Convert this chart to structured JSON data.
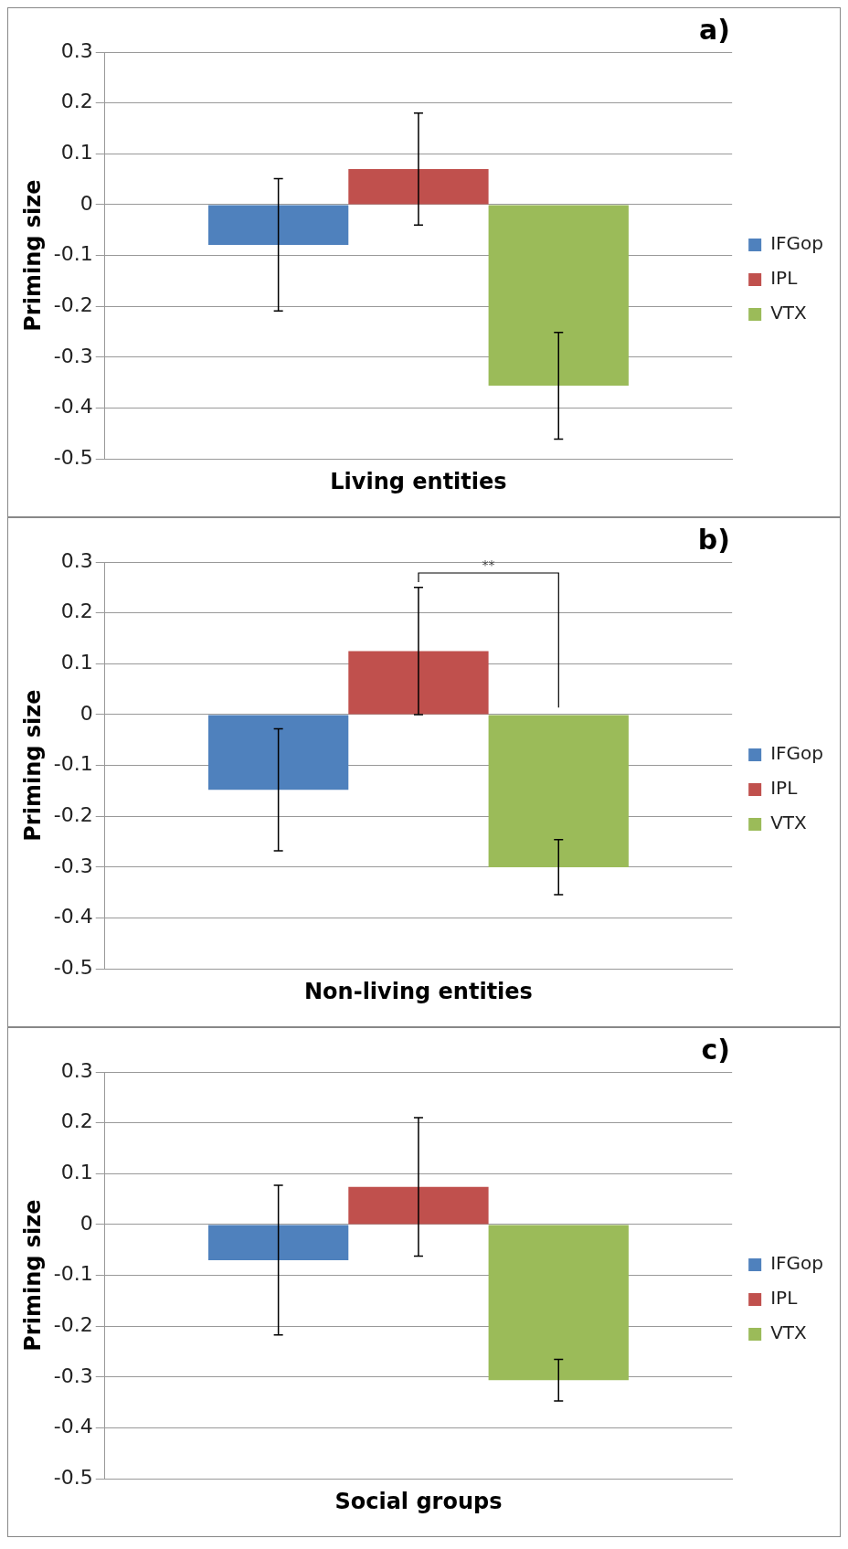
{
  "chart_data": [
    {
      "type": "bar",
      "title": "a)",
      "categories": [
        "Living entities"
      ],
      "ylabel": "Priming size",
      "ylim": [
        -0.5,
        0.3
      ],
      "yticks": [
        -0.5,
        -0.4,
        -0.3,
        -0.2,
        -0.1,
        0,
        0.1,
        0.2,
        0.3
      ],
      "grid": "y",
      "legend": "right",
      "series": [
        {
          "name": "IFGop",
          "color": "#4f81bd",
          "values": [
            -0.079
          ],
          "errors": [
            0.13
          ]
        },
        {
          "name": "IPL",
          "color": "#c0504d",
          "values": [
            0.07
          ],
          "errors": [
            0.11
          ]
        },
        {
          "name": "VTX",
          "color": "#9bbb59",
          "values": [
            -0.356
          ],
          "errors": [
            0.105
          ]
        }
      ]
    },
    {
      "type": "bar",
      "title": "b)",
      "categories": [
        "Non-living entities"
      ],
      "ylabel": "Priming size",
      "ylim": [
        -0.5,
        0.3
      ],
      "yticks": [
        -0.5,
        -0.4,
        -0.3,
        -0.2,
        -0.1,
        0,
        0.1,
        0.2,
        0.3
      ],
      "grid": "y",
      "legend": "right",
      "annotations": [
        "**"
      ],
      "series": [
        {
          "name": "IFGop",
          "color": "#4f81bd",
          "values": [
            -0.148
          ],
          "errors": [
            0.12
          ]
        },
        {
          "name": "IPL",
          "color": "#c0504d",
          "values": [
            0.125
          ],
          "errors": [
            0.125
          ]
        },
        {
          "name": "VTX",
          "color": "#9bbb59",
          "values": [
            -0.3
          ],
          "errors": [
            0.054
          ]
        }
      ]
    },
    {
      "type": "bar",
      "title": "c)",
      "categories": [
        "Social groups"
      ],
      "ylabel": "Priming size",
      "ylim": [
        -0.5,
        0.3
      ],
      "yticks": [
        -0.5,
        -0.4,
        -0.3,
        -0.2,
        -0.1,
        0,
        0.1,
        0.2,
        0.3
      ],
      "grid": "y",
      "legend": "right",
      "series": [
        {
          "name": "IFGop",
          "color": "#4f81bd",
          "values": [
            -0.07
          ],
          "errors": [
            0.147
          ]
        },
        {
          "name": "IPL",
          "color": "#c0504d",
          "values": [
            0.074
          ],
          "errors": [
            0.136
          ]
        },
        {
          "name": "VTX",
          "color": "#9bbb59",
          "values": [
            -0.306
          ],
          "errors": [
            0.041
          ]
        }
      ]
    }
  ]
}
